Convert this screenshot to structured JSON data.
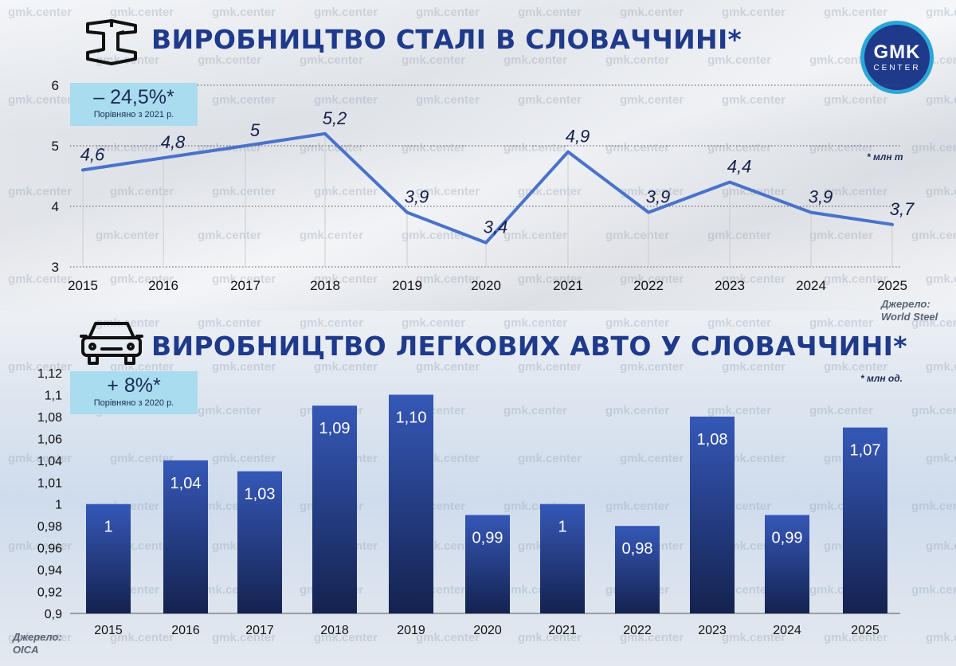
{
  "header": {
    "title1": "ВИРОБНИЦТВО СТАЛІ В СЛОВАЧЧИНІ*",
    "title2": "ВИРОБНИЦТВО ЛЕГКОВИХ АВТО У СЛОВАЧЧИНІ*"
  },
  "logo": {
    "main": "GMK",
    "sub": "CENTER"
  },
  "badges": {
    "steel": {
      "value": "– 24,5%*",
      "caption": "Порівняно з 2021 р."
    },
    "cars": {
      "value": "+ 8%*",
      "caption": "Порівняно з 2020 р."
    }
  },
  "notes": {
    "steel_unit": "* млн т",
    "cars_unit": "* млн од."
  },
  "sources": {
    "steel": [
      "Джерело:",
      "World Steel"
    ],
    "cars": [
      "Джерело:",
      "OICA"
    ]
  },
  "watermark": "gmk.center",
  "colors": {
    "title": "#1f3a8a",
    "line": "#4a72c9",
    "bar_top": "#3558b7",
    "bar_bottom": "#14224f",
    "badge": "#a9dcef"
  },
  "icons": {
    "steel": "steel-beam-icon",
    "cars": "car-icon"
  },
  "chart_data": [
    {
      "type": "line",
      "title": "ВИРОБНИЦТВО СТАЛІ В СЛОВАЧЧИНІ*",
      "x": [
        "2015",
        "2016",
        "2017",
        "2018",
        "2019",
        "2020",
        "2021",
        "2022",
        "2023",
        "2024",
        "2025"
      ],
      "values": [
        4.6,
        4.8,
        5.0,
        5.2,
        3.9,
        3.4,
        4.9,
        3.9,
        4.4,
        3.9,
        3.7
      ],
      "labels": [
        "4,6",
        "4,8",
        "5",
        "5,2",
        "3,9",
        "3,4",
        "4,9",
        "3,9",
        "4,4",
        "3,9",
        "3,7"
      ],
      "yticks": [
        "3",
        "4",
        "5",
        "6"
      ],
      "ylim": [
        3,
        6
      ],
      "grid": true
    },
    {
      "type": "bar",
      "title": "ВИРОБНИЦТВО ЛЕГКОВИХ АВТО У СЛОВАЧЧИНІ*",
      "categories": [
        "2015",
        "2016",
        "2017",
        "2018",
        "2019",
        "2020",
        "2021",
        "2022",
        "2023",
        "2024",
        "2025"
      ],
      "values": [
        1.0,
        1.04,
        1.03,
        1.09,
        1.1,
        0.99,
        1.0,
        0.98,
        1.08,
        0.99,
        1.07
      ],
      "labels": [
        "1",
        "1,04",
        "1,03",
        "1,09",
        "1,10",
        "0,99",
        "1",
        "0,98",
        "1,08",
        "0,99",
        "1,07"
      ],
      "yticks": [
        "0,9",
        "0,92",
        "0,94",
        "0,96",
        "0,98",
        "1",
        "1,01",
        "1,04",
        "1,06",
        "1,08",
        "1,1",
        "1,12"
      ],
      "ylim": [
        0.9,
        1.12
      ],
      "grid": true
    }
  ]
}
